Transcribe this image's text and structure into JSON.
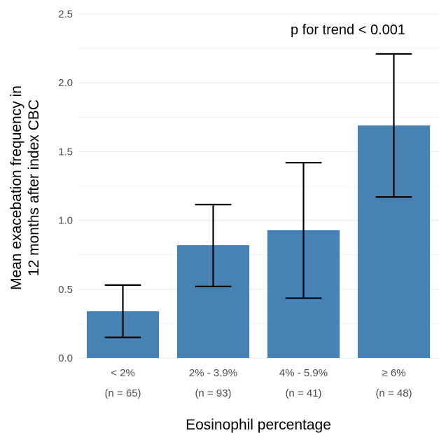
{
  "chart_data": {
    "type": "bar",
    "categories": [
      "< 2%",
      "2% - 3.9%",
      "4% - 5.9%",
      "≥ 6%"
    ],
    "category_counts": [
      "(n = 65)",
      "(n = 93)",
      "(n = 41)",
      "(n = 48)"
    ],
    "values": [
      0.34,
      0.82,
      0.93,
      1.69
    ],
    "error_low": [
      0.15,
      0.52,
      0.435,
      1.17
    ],
    "error_high": [
      0.53,
      1.115,
      1.42,
      2.21
    ],
    "xlabel": "Eosinophil percentage",
    "ylabel_lines": [
      "Mean exacebation frequency in",
      "12 months after index CBC"
    ],
    "ylim": [
      0,
      2.5
    ],
    "yticks": [
      "0.0",
      "0.5",
      "1.0",
      "1.5",
      "2.0",
      "2.5"
    ],
    "annotation": "p for trend < 0.001",
    "grid": true,
    "colors": {
      "bar": "#4682b4",
      "error_bar": "#000000",
      "grid": "#ebebeb"
    }
  }
}
